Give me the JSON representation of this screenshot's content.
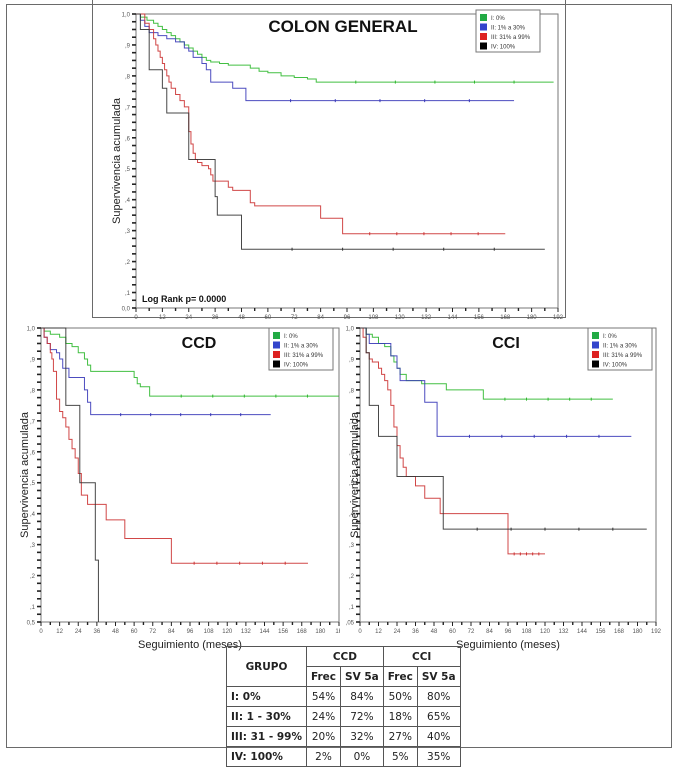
{
  "chart_data": [
    {
      "id": "colon-general",
      "type": "line",
      "subtype": "kaplan-meier step",
      "title": "COLON   GENERAL",
      "xlabel": "",
      "ylabel": "Supervivencia acumulada",
      "annotation": "Log Rank p= 0.0000",
      "xlim": [
        0,
        192
      ],
      "ylim": [
        0.05,
        1.0
      ],
      "xticks": [
        "0",
        "12",
        "24",
        "36",
        "48",
        "60",
        "72",
        "84",
        "96",
        "108",
        "120",
        "132",
        "144",
        "156",
        "168",
        "180",
        "192"
      ],
      "yticks": [
        "0,0",
        ",1",
        ",2",
        ",3",
        ",4",
        ",5",
        ",6",
        ",7",
        ",8",
        ",9",
        "1,0"
      ],
      "legend_position": "top-right",
      "series": [
        {
          "name": "I:   0%",
          "color": "#2eb82e",
          "steps": [
            [
              0,
              1
            ],
            [
              2,
              0.99
            ],
            [
              5,
              0.98
            ],
            [
              8,
              0.97
            ],
            [
              10,
              0.96
            ],
            [
              12,
              0.95
            ],
            [
              14,
              0.94
            ],
            [
              16,
              0.93
            ],
            [
              18,
              0.92
            ],
            [
              20,
              0.91
            ],
            [
              22,
              0.9
            ],
            [
              24,
              0.89
            ],
            [
              26,
              0.88
            ],
            [
              28,
              0.87
            ],
            [
              30,
              0.86
            ],
            [
              32,
              0.85
            ],
            [
              34,
              0.845
            ],
            [
              38,
              0.84
            ],
            [
              42,
              0.835
            ],
            [
              50,
              0.835
            ],
            [
              52,
              0.825
            ],
            [
              56,
              0.815
            ],
            [
              60,
              0.81
            ],
            [
              66,
              0.8
            ],
            [
              72,
              0.795
            ],
            [
              78,
              0.79
            ],
            [
              82,
              0.78
            ],
            [
              190,
              0.78
            ]
          ]
        },
        {
          "name": "II:  1% a 30%",
          "color": "#3838b8",
          "steps": [
            [
              0,
              1
            ],
            [
              2,
              0.98
            ],
            [
              4,
              0.96
            ],
            [
              6,
              0.94
            ],
            [
              10,
              0.93
            ],
            [
              14,
              0.92
            ],
            [
              18,
              0.91
            ],
            [
              22,
              0.89
            ],
            [
              24,
              0.88
            ],
            [
              26,
              0.86
            ],
            [
              30,
              0.84
            ],
            [
              32,
              0.82
            ],
            [
              34,
              0.78
            ],
            [
              44,
              0.76
            ],
            [
              50,
              0.72
            ],
            [
              172,
              0.72
            ]
          ]
        },
        {
          "name": "III: 31% a 99%",
          "color": "#cc3333",
          "steps": [
            [
              0,
              1
            ],
            [
              4,
              0.97
            ],
            [
              6,
              0.95
            ],
            [
              8,
              0.92
            ],
            [
              9,
              0.9
            ],
            [
              10,
              0.88
            ],
            [
              11,
              0.86
            ],
            [
              12,
              0.84
            ],
            [
              13,
              0.82
            ],
            [
              14,
              0.8
            ],
            [
              15,
              0.78
            ],
            [
              16,
              0.76
            ],
            [
              18,
              0.74
            ],
            [
              20,
              0.72
            ],
            [
              22,
              0.7
            ],
            [
              24,
              0.62
            ],
            [
              25,
              0.58
            ],
            [
              26,
              0.55
            ],
            [
              27,
              0.53
            ],
            [
              28,
              0.52
            ],
            [
              30,
              0.51
            ],
            [
              33,
              0.5
            ],
            [
              34,
              0.48
            ],
            [
              35,
              0.46
            ],
            [
              42,
              0.44
            ],
            [
              44,
              0.43
            ],
            [
              52,
              0.39
            ],
            [
              54,
              0.38
            ],
            [
              84,
              0.34
            ],
            [
              94,
              0.29
            ],
            [
              168,
              0.29
            ]
          ]
        },
        {
          "name": "IV: 100%",
          "color": "#000000",
          "steps": [
            [
              0,
              1
            ],
            [
              2,
              0.95
            ],
            [
              6,
              0.82
            ],
            [
              12,
              0.76
            ],
            [
              14,
              0.68
            ],
            [
              24,
              0.53
            ],
            [
              36,
              0.41
            ],
            [
              37,
              0.35
            ],
            [
              48,
              0.24
            ],
            [
              186,
              0.24
            ]
          ]
        }
      ]
    },
    {
      "id": "ccd",
      "type": "line",
      "subtype": "kaplan-meier step",
      "title": "CCD",
      "xlabel": "Seguimiento (meses)",
      "ylabel": "Supervivencia acumulada",
      "xlim": [
        0,
        192
      ],
      "ylim": [
        0.05,
        1.0
      ],
      "xticks": [
        "0",
        "12",
        "24",
        "36",
        "48",
        "60",
        "72",
        "84",
        "96",
        "108",
        "120",
        "132",
        "144",
        "156",
        "168",
        "180",
        "1K"
      ],
      "yticks": [
        "0,5",
        ",1",
        ",2",
        ",3",
        ",4",
        ",5",
        ",6",
        ",7",
        ",8",
        ",9",
        "1,0"
      ],
      "legend_position": "top-right",
      "series": [
        {
          "name": "I:   0%",
          "color": "#2eb82e",
          "steps": [
            [
              0,
              1
            ],
            [
              2,
              0.99
            ],
            [
              6,
              0.98
            ],
            [
              12,
              0.97
            ],
            [
              16,
              0.95
            ],
            [
              20,
              0.94
            ],
            [
              24,
              0.92
            ],
            [
              28,
              0.9
            ],
            [
              30,
              0.88
            ],
            [
              32,
              0.86
            ],
            [
              60,
              0.84
            ],
            [
              62,
              0.82
            ],
            [
              64,
              0.81
            ],
            [
              70,
              0.78
            ],
            [
              192,
              0.78
            ]
          ]
        },
        {
          "name": "II:  1% a 30%",
          "color": "#3838b8",
          "steps": [
            [
              0,
              1
            ],
            [
              2,
              0.97
            ],
            [
              4,
              0.95
            ],
            [
              6,
              0.93
            ],
            [
              10,
              0.92
            ],
            [
              12,
              0.9
            ],
            [
              14,
              0.87
            ],
            [
              18,
              0.84
            ],
            [
              28,
              0.8
            ],
            [
              30,
              0.76
            ],
            [
              32,
              0.72
            ],
            [
              148,
              0.72
            ]
          ]
        },
        {
          "name": "III: 31% a 99%",
          "color": "#cc3333",
          "steps": [
            [
              0,
              1
            ],
            [
              2,
              0.97
            ],
            [
              4,
              0.95
            ],
            [
              6,
              0.92
            ],
            [
              7,
              0.9
            ],
            [
              8,
              0.86
            ],
            [
              10,
              0.77
            ],
            [
              12,
              0.73
            ],
            [
              14,
              0.71
            ],
            [
              16,
              0.68
            ],
            [
              18,
              0.64
            ],
            [
              20,
              0.61
            ],
            [
              22,
              0.58
            ],
            [
              24,
              0.53
            ],
            [
              26,
              0.46
            ],
            [
              30,
              0.43
            ],
            [
              42,
              0.38
            ],
            [
              54,
              0.32
            ],
            [
              84,
              0.24
            ],
            [
              172,
              0.24
            ]
          ]
        },
        {
          "name": "IV: 100%",
          "color": "#000000",
          "steps": [
            [
              0,
              1
            ],
            [
              16,
              0.75
            ],
            [
              25,
              0.5
            ],
            [
              35,
              0.25
            ],
            [
              37,
              0.05
            ]
          ]
        }
      ]
    },
    {
      "id": "cci",
      "type": "line",
      "subtype": "kaplan-meier step",
      "title": "CCI",
      "xlabel": "Seguimiento (meses)",
      "ylabel": "Supervivencia acumulada",
      "xlim": [
        0,
        192
      ],
      "ylim": [
        0.05,
        1.0
      ],
      "xticks": [
        "0",
        "12",
        "24",
        "36",
        "48",
        "60",
        "72",
        "84",
        "96",
        "108",
        "120",
        "132",
        "144",
        "156",
        "168",
        "180",
        "192"
      ],
      "yticks": [
        ",05",
        ",1",
        ",2",
        ",3",
        ",4",
        ",5",
        ",6",
        ",7",
        ",8",
        ",9",
        "1,0"
      ],
      "legend_position": "top-right",
      "series": [
        {
          "name": "I:   0%",
          "color": "#2eb82e",
          "steps": [
            [
              0,
              1
            ],
            [
              4,
              0.98
            ],
            [
              8,
              0.97
            ],
            [
              12,
              0.95
            ],
            [
              16,
              0.94
            ],
            [
              20,
              0.91
            ],
            [
              22,
              0.89
            ],
            [
              24,
              0.87
            ],
            [
              26,
              0.85
            ],
            [
              30,
              0.83
            ],
            [
              40,
              0.82
            ],
            [
              56,
              0.8
            ],
            [
              80,
              0.77
            ],
            [
              164,
              0.77
            ]
          ]
        },
        {
          "name": "II:  1% a 30%",
          "color": "#3838b8",
          "steps": [
            [
              0,
              1
            ],
            [
              4,
              0.98
            ],
            [
              6,
              0.95
            ],
            [
              20,
              0.91
            ],
            [
              24,
              0.87
            ],
            [
              26,
              0.83
            ],
            [
              42,
              0.76
            ],
            [
              50,
              0.65
            ],
            [
              176,
              0.65
            ]
          ]
        },
        {
          "name": "III: 31% a 99%",
          "color": "#cc3333",
          "steps": [
            [
              0,
              1
            ],
            [
              2,
              0.97
            ],
            [
              4,
              0.92
            ],
            [
              6,
              0.9
            ],
            [
              8,
              0.89
            ],
            [
              12,
              0.87
            ],
            [
              14,
              0.85
            ],
            [
              16,
              0.83
            ],
            [
              18,
              0.8
            ],
            [
              20,
              0.75
            ],
            [
              22,
              0.68
            ],
            [
              24,
              0.62
            ],
            [
              26,
              0.58
            ],
            [
              28,
              0.55
            ],
            [
              30,
              0.52
            ],
            [
              36,
              0.49
            ],
            [
              42,
              0.45
            ],
            [
              52,
              0.4
            ],
            [
              96,
              0.27
            ],
            [
              120,
              0.27
            ]
          ]
        },
        {
          "name": "IV: 100%",
          "color": "#000000",
          "steps": [
            [
              0,
              1
            ],
            [
              4,
              0.92
            ],
            [
              6,
              0.75
            ],
            [
              12,
              0.65
            ],
            [
              24,
              0.52
            ],
            [
              54,
              0.35
            ],
            [
              186,
              0.35
            ]
          ]
        }
      ]
    },
    {
      "id": "summary-table",
      "type": "table",
      "header_group": "GRUPO",
      "column_groups": [
        "CCD",
        "CCI"
      ],
      "subcolumns": [
        "Frec",
        "SV 5a",
        "Frec",
        "SV 5a"
      ],
      "rows": [
        {
          "group": "I:    0%",
          "values": [
            "54%",
            "84%",
            "50%",
            "80%"
          ]
        },
        {
          "group": "II:   1 - 30%",
          "values": [
            "24%",
            "72%",
            "18%",
            "65%"
          ]
        },
        {
          "group": "III:  31 - 99%",
          "values": [
            "20%",
            "32%",
            "27%",
            "40%"
          ]
        },
        {
          "group": "IV: 100%",
          "values": [
            "2%",
            "0%",
            "5%",
            "35%"
          ]
        }
      ]
    }
  ]
}
